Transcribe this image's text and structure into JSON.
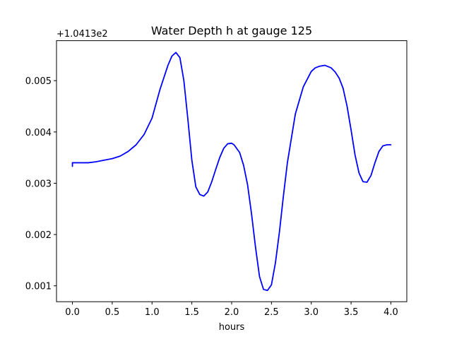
{
  "chart_data": {
    "type": "line",
    "title": "Water Depth h at gauge 125",
    "xlabel": "hours",
    "ylabel": "",
    "offset_text": "+1.0413e2",
    "xlim": [
      -0.2,
      4.2
    ],
    "ylim": [
      0.00069,
      0.00578
    ],
    "xticks": [
      0.0,
      0.5,
      1.0,
      1.5,
      2.0,
      2.5,
      3.0,
      3.5,
      4.0
    ],
    "xtick_labels": [
      "0.0",
      "0.5",
      "1.0",
      "1.5",
      "2.0",
      "2.5",
      "3.0",
      "3.5",
      "4.0"
    ],
    "yticks": [
      0.001,
      0.002,
      0.003,
      0.004,
      0.005
    ],
    "ytick_labels": [
      "0.001",
      "0.002",
      "0.003",
      "0.004",
      "0.005"
    ],
    "grid": false,
    "legend": false,
    "series": [
      {
        "color": "#0000ff",
        "x": [
          0.0,
          0.0,
          0.05,
          0.1,
          0.2,
          0.3,
          0.4,
          0.5,
          0.6,
          0.7,
          0.8,
          0.9,
          1.0,
          1.1,
          1.2,
          1.25,
          1.3,
          1.35,
          1.4,
          1.45,
          1.5,
          1.55,
          1.6,
          1.65,
          1.7,
          1.75,
          1.8,
          1.85,
          1.9,
          1.95,
          2.0,
          2.03,
          2.1,
          2.15,
          2.2,
          2.25,
          2.3,
          2.35,
          2.4,
          2.45,
          2.5,
          2.55,
          2.6,
          2.65,
          2.7,
          2.8,
          2.9,
          3.0,
          3.05,
          3.1,
          3.17,
          3.25,
          3.3,
          3.35,
          3.4,
          3.45,
          3.5,
          3.55,
          3.6,
          3.65,
          3.7,
          3.75,
          3.8,
          3.85,
          3.9,
          3.95,
          4.0
        ],
        "y": [
          0.00333,
          0.0034,
          0.0034,
          0.0034,
          0.0034,
          0.00342,
          0.00345,
          0.00348,
          0.00353,
          0.00362,
          0.00375,
          0.00395,
          0.00427,
          0.00483,
          0.0053,
          0.00548,
          0.00555,
          0.00545,
          0.005,
          0.00425,
          0.00345,
          0.00293,
          0.00278,
          0.00275,
          0.00283,
          0.00303,
          0.00327,
          0.0035,
          0.00368,
          0.00377,
          0.00378,
          0.00375,
          0.0036,
          0.00335,
          0.00297,
          0.0024,
          0.00175,
          0.00118,
          0.00093,
          0.00091,
          0.00102,
          0.00145,
          0.00205,
          0.00275,
          0.0034,
          0.00435,
          0.00488,
          0.00518,
          0.00525,
          0.00528,
          0.0053,
          0.00525,
          0.00517,
          0.00505,
          0.00485,
          0.0045,
          0.00404,
          0.00355,
          0.0032,
          0.00303,
          0.00302,
          0.00315,
          0.0034,
          0.00362,
          0.00373,
          0.00375,
          0.00375
        ]
      }
    ]
  }
}
